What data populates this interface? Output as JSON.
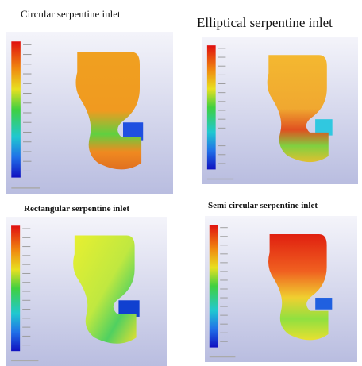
{
  "panels": [
    {
      "title": "Circular serpentine inlet"
    },
    {
      "title": "Elliptical serpentine inlet"
    },
    {
      "title": "Rectangular serpentine inlet"
    },
    {
      "title": "Semi circular serpentine inlet"
    }
  ]
}
